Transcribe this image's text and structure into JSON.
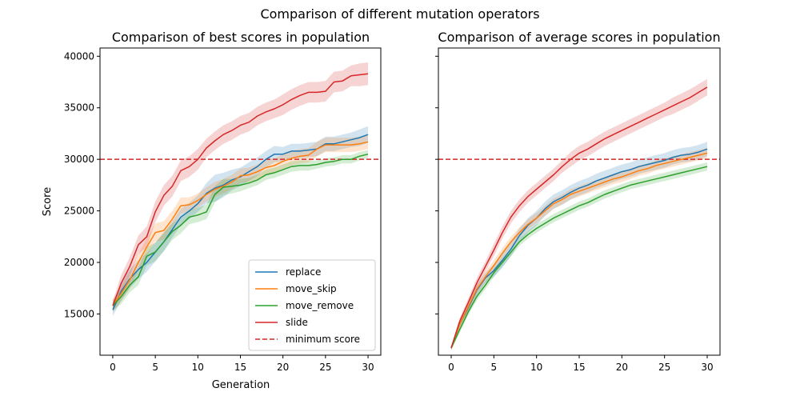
{
  "suptitle": "Comparison of different mutation operators",
  "colors": {
    "replace": "#1f77b4",
    "move_skip": "#ff7f0e",
    "move_remove": "#2ca02c",
    "slide": "#d62728",
    "threshold": "#d62728"
  },
  "chart_data": [
    {
      "type": "line",
      "title": "Comparison of best scores in population",
      "xlabel": "Generation",
      "ylabel": "Score",
      "xlim": [
        -1.5,
        31.5
      ],
      "ylim": [
        11000,
        40800
      ],
      "x_ticks": [
        0,
        5,
        10,
        15,
        20,
        25,
        30
      ],
      "x_tick_labels": [
        "0",
        "5",
        "10",
        "15",
        "20",
        "25",
        "30"
      ],
      "y_ticks": [
        15000,
        20000,
        25000,
        30000,
        35000,
        40000
      ],
      "y_tick_labels": [
        "15000",
        "20000",
        "25000",
        "30000",
        "35000",
        "40000"
      ],
      "threshold": {
        "name": "minimum score",
        "value": 30000,
        "style": "dashed"
      },
      "legend": "lower-right",
      "x": [
        0,
        1,
        2,
        3,
        4,
        5,
        6,
        7,
        8,
        9,
        10,
        11,
        12,
        13,
        14,
        15,
        16,
        17,
        18,
        19,
        20,
        21,
        22,
        23,
        24,
        25,
        26,
        27,
        28,
        29,
        30
      ],
      "series": [
        {
          "name": "replace",
          "color_key": "replace",
          "values": [
            15400,
            17200,
            18400,
            19300,
            20000,
            21000,
            22000,
            23200,
            24400,
            25000,
            25700,
            26700,
            27200,
            27500,
            28000,
            28300,
            28800,
            29300,
            30000,
            30500,
            30500,
            30800,
            30800,
            30900,
            31000,
            31500,
            31500,
            31700,
            31900,
            32100,
            32400
          ],
          "band": [
            600,
            900,
            900,
            900,
            900,
            900,
            900,
            800,
            800,
            800,
            800,
            1000,
            1300,
            1200,
            1000,
            900,
            900,
            900,
            800,
            800,
            700,
            700,
            700,
            700,
            700,
            700,
            700,
            700,
            700,
            800,
            800
          ]
        },
        {
          "name": "move_skip",
          "color_key": "move_skip",
          "values": [
            15800,
            17000,
            18300,
            20000,
            21500,
            22900,
            23100,
            24200,
            25500,
            25600,
            26000,
            26600,
            27100,
            27400,
            27800,
            28400,
            28500,
            28800,
            29200,
            29400,
            29800,
            30100,
            30300,
            30400,
            31000,
            31400,
            31400,
            31400,
            31400,
            31500,
            31700
          ],
          "band": [
            600,
            700,
            800,
            800,
            900,
            900,
            900,
            800,
            800,
            700,
            700,
            700,
            700,
            700,
            700,
            700,
            700,
            700,
            700,
            700,
            700,
            700,
            700,
            700,
            700,
            700,
            700,
            700,
            700,
            700,
            700
          ]
        },
        {
          "name": "move_remove",
          "color_key": "move_remove",
          "values": [
            15800,
            16700,
            17800,
            18600,
            20600,
            21000,
            22000,
            23000,
            23600,
            24400,
            24600,
            24900,
            26600,
            27300,
            27400,
            27500,
            27700,
            28000,
            28500,
            28700,
            29000,
            29300,
            29400,
            29400,
            29500,
            29700,
            29800,
            30000,
            30000,
            30300,
            30500
          ],
          "band": [
            500,
            700,
            700,
            800,
            900,
            900,
            900,
            800,
            800,
            700,
            700,
            700,
            800,
            800,
            700,
            600,
            500,
            500,
            500,
            500,
            500,
            500,
            500,
            500,
            400,
            400,
            400,
            400,
            400,
            400,
            400
          ]
        },
        {
          "name": "slide",
          "color_key": "slide",
          "values": [
            15800,
            18000,
            19600,
            21700,
            22500,
            24900,
            26500,
            27400,
            28900,
            29300,
            30000,
            31100,
            31800,
            32400,
            32800,
            33300,
            33600,
            34200,
            34600,
            34900,
            35300,
            35800,
            36200,
            36500,
            36500,
            36600,
            37500,
            37600,
            38100,
            38200,
            38300
          ],
          "band": [
            500,
            800,
            900,
            900,
            1000,
            1000,
            1000,
            1000,
            1000,
            1000,
            1000,
            900,
            900,
            900,
            900,
            900,
            900,
            900,
            900,
            900,
            1000,
            1000,
            1000,
            1000,
            1000,
            1000,
            1000,
            1000,
            1000,
            1100,
            1100
          ]
        }
      ]
    },
    {
      "type": "line",
      "title": "Comparison of average scores in population",
      "xlabel": "",
      "ylabel": "",
      "xlim": [
        -1.5,
        31.5
      ],
      "ylim": [
        11000,
        40800
      ],
      "x_ticks": [
        0,
        5,
        10,
        15,
        20,
        25,
        30
      ],
      "x_tick_labels": [
        "0",
        "5",
        "10",
        "15",
        "20",
        "25",
        "30"
      ],
      "y_ticks": [
        15000,
        20000,
        25000,
        30000,
        35000,
        40000
      ],
      "y_tick_labels": [],
      "threshold": {
        "name": "minimum score",
        "value": 30000,
        "style": "dashed"
      },
      "x": [
        0,
        1,
        2,
        3,
        4,
        5,
        6,
        7,
        8,
        9,
        10,
        11,
        12,
        13,
        14,
        15,
        16,
        17,
        18,
        19,
        20,
        21,
        22,
        23,
        24,
        25,
        26,
        27,
        28,
        29,
        30
      ],
      "series": [
        {
          "name": "replace",
          "color_key": "replace",
          "values": [
            11700,
            14000,
            15600,
            17300,
            18500,
            19200,
            20200,
            21300,
            22600,
            23600,
            24300,
            25200,
            25900,
            26300,
            26800,
            27200,
            27500,
            27900,
            28200,
            28500,
            28800,
            29000,
            29300,
            29500,
            29700,
            29900,
            30200,
            30400,
            30500,
            30700,
            31000
          ],
          "band": [
            200,
            300,
            400,
            500,
            500,
            600,
            700,
            700,
            700,
            700,
            700,
            700,
            700,
            700,
            700,
            700,
            700,
            700,
            700,
            700,
            700,
            700,
            700,
            700,
            700,
            700,
            700,
            700,
            700,
            700,
            700
          ]
        },
        {
          "name": "move_skip",
          "color_key": "move_skip",
          "values": [
            11700,
            14000,
            15700,
            17400,
            18600,
            19700,
            20900,
            22000,
            22900,
            23700,
            24300,
            25000,
            25700,
            26100,
            26600,
            26900,
            27200,
            27500,
            27800,
            28100,
            28300,
            28600,
            28900,
            29100,
            29400,
            29600,
            29800,
            30000,
            30200,
            30400,
            30600
          ],
          "band": [
            200,
            300,
            400,
            400,
            500,
            500,
            500,
            500,
            500,
            500,
            500,
            500,
            500,
            500,
            500,
            500,
            500,
            500,
            500,
            500,
            500,
            500,
            500,
            500,
            500,
            500,
            500,
            500,
            500,
            500,
            500
          ]
        },
        {
          "name": "move_remove",
          "color_key": "move_remove",
          "values": [
            11700,
            13500,
            15200,
            16700,
            17800,
            19000,
            20000,
            21000,
            22000,
            22700,
            23300,
            23800,
            24300,
            24700,
            25100,
            25500,
            25800,
            26200,
            26600,
            26900,
            27200,
            27500,
            27700,
            27900,
            28100,
            28300,
            28500,
            28700,
            28900,
            29100,
            29300
          ],
          "band": [
            200,
            300,
            300,
            400,
            400,
            400,
            400,
            400,
            400,
            400,
            400,
            400,
            400,
            400,
            400,
            400,
            400,
            400,
            400,
            400,
            400,
            400,
            400,
            400,
            400,
            400,
            400,
            400,
            400,
            400,
            400
          ]
        },
        {
          "name": "slide",
          "color_key": "slide",
          "values": [
            11700,
            14300,
            16100,
            18000,
            19600,
            21200,
            22900,
            24400,
            25500,
            26400,
            27100,
            27800,
            28500,
            29300,
            30000,
            30600,
            31000,
            31500,
            32000,
            32400,
            32800,
            33200,
            33600,
            34000,
            34400,
            34800,
            35200,
            35600,
            36000,
            36500,
            37000
          ],
          "band": [
            200,
            300,
            400,
            500,
            500,
            600,
            600,
            600,
            600,
            600,
            600,
            600,
            600,
            600,
            700,
            700,
            700,
            700,
            700,
            700,
            700,
            700,
            700,
            700,
            700,
            700,
            800,
            800,
            800,
            800,
            800
          ]
        }
      ]
    }
  ]
}
